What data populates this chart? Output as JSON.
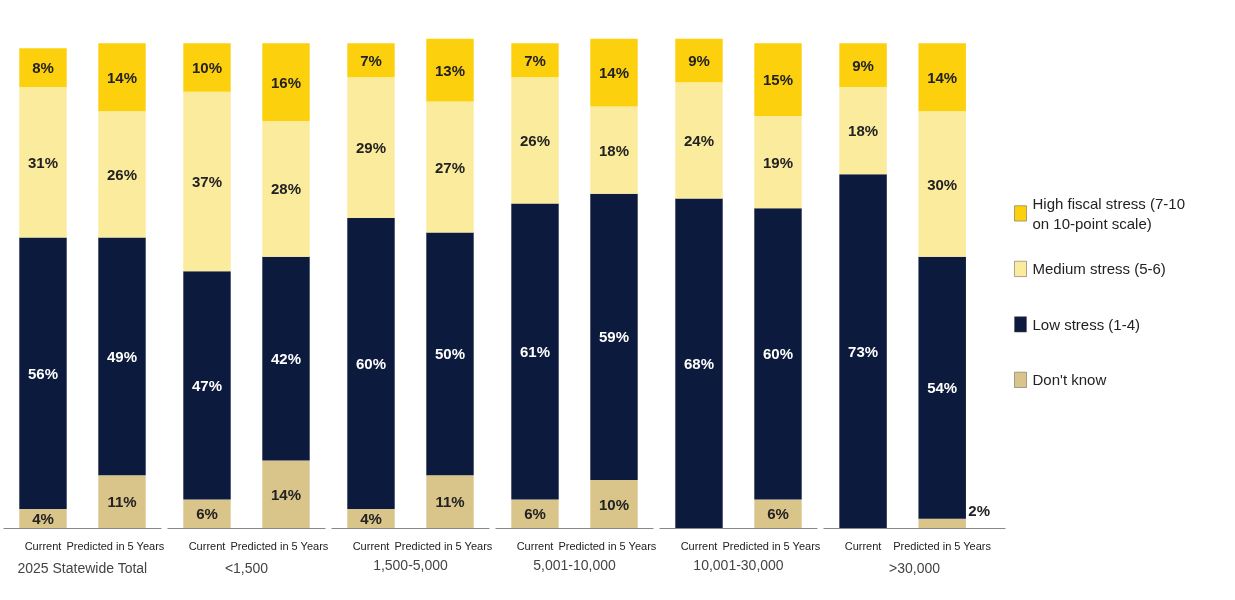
{
  "chart_data": [
    {
      "type": "bar",
      "stacked": true,
      "legend": false,
      "xlabel": "2025 Statewide Total",
      "categories": [
        "Current",
        "Predicted in 5 Years"
      ],
      "series": [
        {
          "color": "#d9c48a",
          "values": [
            4,
            11
          ],
          "value_labels": [
            "4%",
            "11%"
          ]
        },
        {
          "color": "#0b1a3d",
          "values": [
            56,
            49
          ],
          "value_labels": [
            "56%",
            "49%"
          ]
        },
        {
          "color": "#fbeb9c",
          "values": [
            31,
            26
          ],
          "value_labels": [
            "31%",
            "26%"
          ]
        },
        {
          "color": "#fdd00e",
          "values": [
            8,
            14
          ],
          "value_labels": [
            "8%",
            "14%"
          ]
        }
      ]
    },
    {
      "type": "bar",
      "stacked": true,
      "legend": false,
      "xlabel": "<1,500",
      "categories": [
        "Current",
        "Predicted in 5 Years"
      ],
      "series": [
        {
          "color": "#d9c48a",
          "values": [
            6,
            14
          ],
          "value_labels": [
            "6%",
            "14%"
          ]
        },
        {
          "color": "#0b1a3d",
          "values": [
            47,
            42
          ],
          "value_labels": [
            "47%",
            "42%"
          ]
        },
        {
          "color": "#fbeb9c",
          "values": [
            37,
            28
          ],
          "value_labels": [
            "37%",
            "28%"
          ]
        },
        {
          "color": "#fdd00e",
          "values": [
            10,
            16
          ],
          "value_labels": [
            "10%",
            "16%"
          ]
        }
      ]
    },
    {
      "type": "bar",
      "stacked": true,
      "legend": false,
      "xlabel": "1,500-5,000",
      "categories": [
        "Current",
        "Predicted in 5 Years"
      ],
      "series": [
        {
          "color": "#d9c48a",
          "values": [
            4,
            11
          ],
          "value_labels": [
            "4%",
            "11%"
          ]
        },
        {
          "color": "#0b1a3d",
          "values": [
            60,
            50
          ],
          "value_labels": [
            "60%",
            "50%"
          ]
        },
        {
          "color": "#fbeb9c",
          "values": [
            29,
            27
          ],
          "value_labels": [
            "29%",
            "27%"
          ]
        },
        {
          "color": "#fdd00e",
          "values": [
            7,
            13
          ],
          "value_labels": [
            "7%",
            "13%"
          ]
        }
      ]
    },
    {
      "type": "bar",
      "stacked": true,
      "legend": false,
      "xlabel": "5,001-10,000",
      "categories": [
        "Current",
        "Predicted in 5 Years"
      ],
      "series": [
        {
          "color": "#d9c48a",
          "values": [
            6,
            10
          ],
          "value_labels": [
            "6%",
            "10%"
          ]
        },
        {
          "color": "#0b1a3d",
          "values": [
            61,
            59
          ],
          "value_labels": [
            "61%",
            "59%"
          ]
        },
        {
          "color": "#fbeb9c",
          "values": [
            26,
            18
          ],
          "value_labels": [
            "26%",
            "18%"
          ]
        },
        {
          "color": "#fdd00e",
          "values": [
            7,
            14
          ],
          "value_labels": [
            "7%",
            "14%"
          ]
        }
      ]
    },
    {
      "type": "bar",
      "stacked": true,
      "legend": false,
      "xlabel": "10,001-30,000",
      "categories": [
        "Current",
        "Predicted in 5 Years"
      ],
      "series": [
        {
          "color": "#d9c48a",
          "values": [
            null,
            6
          ],
          "value_labels": [
            null,
            "6%"
          ]
        },
        {
          "color": "#0b1a3d",
          "values": [
            68,
            60
          ],
          "value_labels": [
            "68%",
            "60%"
          ]
        },
        {
          "color": "#fbeb9c",
          "values": [
            24,
            19
          ],
          "value_labels": [
            "24%",
            "19%"
          ]
        },
        {
          "color": "#fdd00e",
          "values": [
            9,
            15
          ],
          "value_labels": [
            "9%",
            "15%"
          ]
        }
      ]
    },
    {
      "type": "bar",
      "stacked": true,
      "legend": "right",
      "xlabel": ">30,000",
      "categories": [
        "Current",
        "Predicted in 5 Years"
      ],
      "series": [
        {
          "name": "Don't know",
          "color": "#d9c48a",
          "values": [
            null,
            2
          ],
          "value_labels": [
            null,
            "2%"
          ]
        },
        {
          "name": "Low stress (1-4)",
          "color": "#0b1a3d",
          "values": [
            73,
            54
          ],
          "value_labels": [
            "73%",
            "54%"
          ]
        },
        {
          "name": "Medium stress (5-6)",
          "color": "#fbeb9c",
          "values": [
            18,
            30
          ],
          "value_labels": [
            "18%",
            "30%"
          ]
        },
        {
          "name": "High fiscal stress (7-10 on 10-point scale)",
          "color": "#fdd00e",
          "values": [
            9,
            14
          ],
          "value_labels": [
            "9%",
            "14%"
          ]
        }
      ]
    }
  ]
}
